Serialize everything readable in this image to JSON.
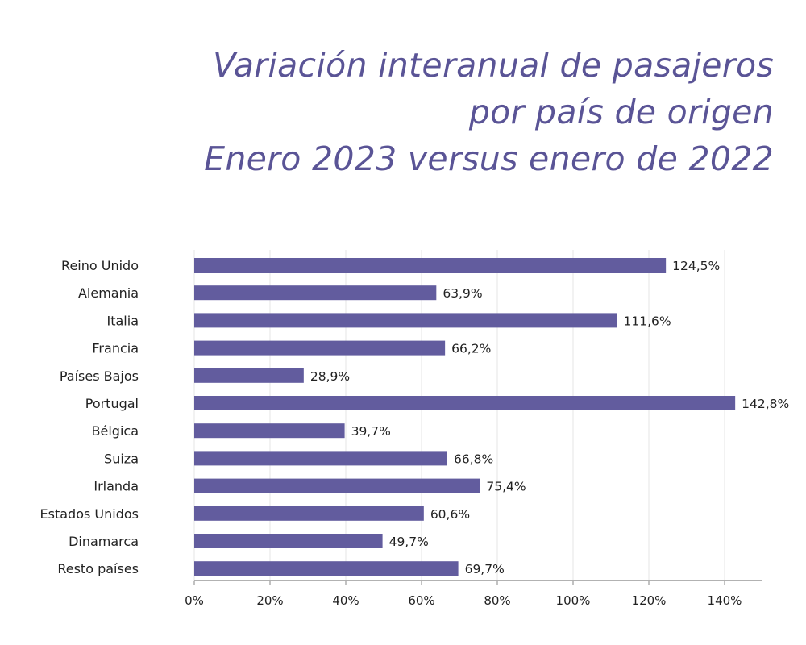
{
  "title_lines": [
    "Variación interanual de pasajeros",
    "por país de origen",
    "Enero 2023 versus enero de 2022"
  ],
  "colors": {
    "bar": "#625c9e",
    "title": "#5a5496",
    "grid": "#e6e6e6",
    "axis": "#999999"
  },
  "chart_data": {
    "type": "bar",
    "orientation": "horizontal",
    "title": "Variación interanual de pasajeros por país de origen Enero 2023 versus enero de 2022",
    "categories": [
      "Reino Unido",
      "Alemania",
      "Italia",
      "Francia",
      "Países Bajos",
      "Portugal",
      "Bélgica",
      "Suiza",
      "Irlanda",
      "Estados Unidos",
      "Dinamarca",
      "Resto países"
    ],
    "values": [
      124.5,
      63.9,
      111.6,
      66.2,
      28.9,
      142.8,
      39.7,
      66.8,
      75.4,
      60.6,
      49.7,
      69.7
    ],
    "value_labels": [
      "124,5%",
      "63,9%",
      "111,6%",
      "66,2%",
      "28,9%",
      "142,8%",
      "39,7%",
      "66,8%",
      "75,4%",
      "60,6%",
      "49,7%",
      "69,7%"
    ],
    "xlim": [
      0,
      150
    ],
    "xticks": [
      0,
      20,
      40,
      60,
      80,
      100,
      120,
      140
    ],
    "xtick_labels": [
      "0%",
      "20%",
      "40%",
      "60%",
      "80%",
      "100%",
      "120%",
      "140%"
    ],
    "grid": true,
    "legend": "none"
  }
}
